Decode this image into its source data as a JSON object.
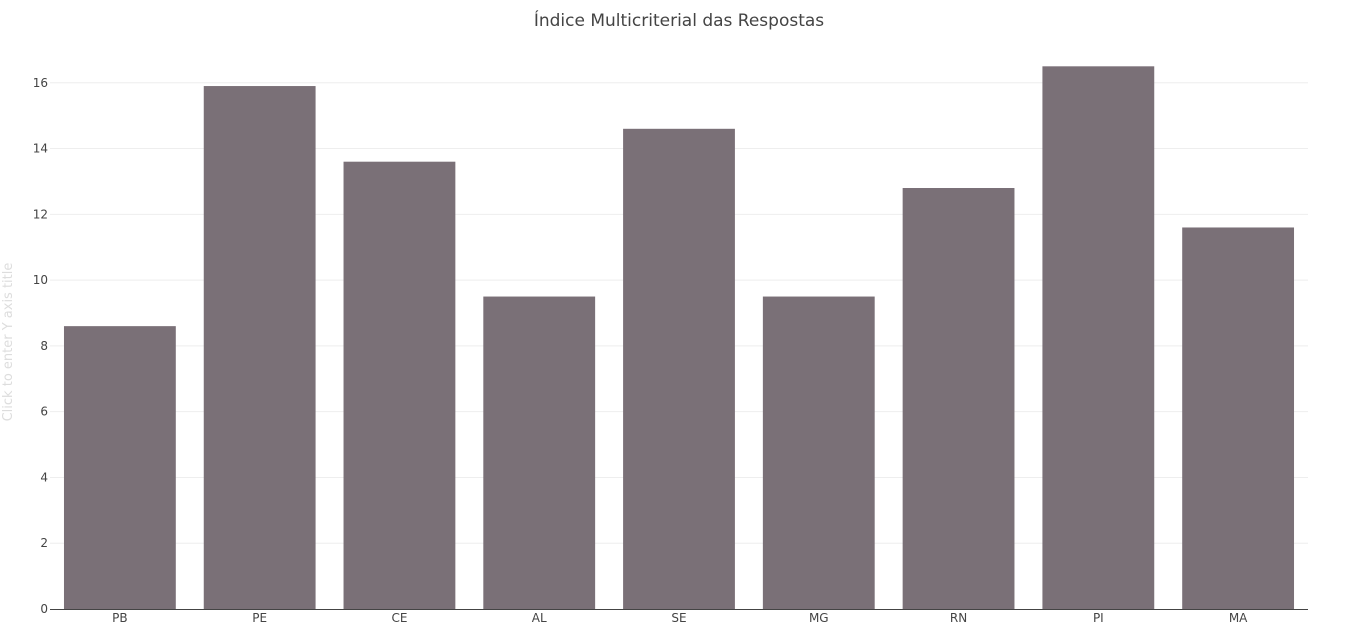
{
  "chart_data": {
    "type": "bar",
    "title": "Índice Multicriterial das Respostas",
    "xlabel": "",
    "ylabel": "Click to enter Y axis title",
    "categories": [
      "PB",
      "PE",
      "CE",
      "AL",
      "SE",
      "MG",
      "RN",
      "PI",
      "MA"
    ],
    "values": [
      8.6,
      15.9,
      13.6,
      9.5,
      14.6,
      9.5,
      12.8,
      16.5,
      11.6
    ],
    "ylim": [
      0,
      17.3
    ],
    "yticks": [
      0,
      2,
      4,
      6,
      8,
      10,
      12,
      14,
      16
    ],
    "grid": true,
    "legend": "none",
    "colors": {
      "bar": "#7a7077",
      "grid": "#eeeeee",
      "axis": "#444444"
    }
  }
}
